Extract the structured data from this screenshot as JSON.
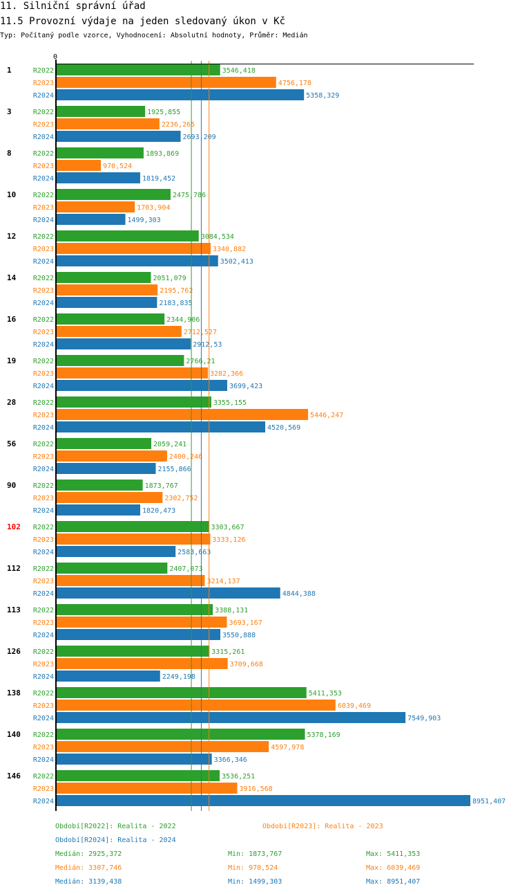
{
  "header": {
    "title": "11. Silniční správní úřad",
    "subtitle": "11.5 Provozní výdaje na jeden sledovaný úkon v Kč",
    "info": "Typ: Počítaný podle vzorce, Vyhodnocení: Absolutní hodnoty, Průměr: Medián"
  },
  "chart_data": {
    "type": "bar",
    "orientation": "horizontal",
    "axis_zero_label": "0",
    "xlim": [
      0,
      8951.407
    ],
    "categories": [
      "1",
      "3",
      "8",
      "10",
      "12",
      "14",
      "16",
      "19",
      "28",
      "56",
      "90",
      "102",
      "112",
      "113",
      "126",
      "138",
      "140",
      "146"
    ],
    "highlight_category": "102",
    "highlight_color": "#ff0000",
    "series": [
      {
        "name": "R2022",
        "color": "#2ca02c",
        "values": [
          "3546,418",
          "1925,855",
          "1893,869",
          "2475,786",
          "3084,534",
          "2051,079",
          "2344,906",
          "2766,21",
          "3355,155",
          "2059,241",
          "1873,767",
          "3303,667",
          "2407,073",
          "3388,131",
          "3315,261",
          "5411,353",
          "5378,169",
          "3536,251"
        ]
      },
      {
        "name": "R2023",
        "color": "#ff7f0e",
        "values": [
          "4756,178",
          "2236,265",
          "970,524",
          "1703,904",
          "3340,882",
          "2195,762",
          "2712,527",
          "3282,366",
          "5446,247",
          "2400,246",
          "2302,752",
          "3333,126",
          "3214,137",
          "3693,167",
          "3709,668",
          "6039,469",
          "4597,978",
          "3916,568"
        ]
      },
      {
        "name": "R2024",
        "color": "#1f77b4",
        "values": [
          "5358,329",
          "2693,209",
          "1819,452",
          "1499,303",
          "3502,413",
          "2183,835",
          "2912,53",
          "3699,423",
          "4520,569",
          "2155,866",
          "1820,473",
          "2583,663",
          "4844,388",
          "3550,888",
          "2249,198",
          "7549,903",
          "3366,346",
          "8951,407"
        ]
      }
    ],
    "median_lines": [
      2925.372,
      3307.746,
      3139.438
    ],
    "legend": [
      {
        "text": "Období[R2022]: Realita - 2022",
        "color": "#2ca02c"
      },
      {
        "text": "Období[R2023]: Realita - 2023",
        "color": "#ff7f0e"
      },
      {
        "text": "Období[R2024]: Realita - 2024",
        "color": "#1f77b4"
      }
    ],
    "stats": [
      {
        "median": "Medián: 2925,372",
        "min": "Min: 1873,767",
        "max": "Max: 5411,353",
        "color": "#2ca02c"
      },
      {
        "median": "Medián: 3307,746",
        "min": "Min: 970,524",
        "max": "Max: 6039,469",
        "color": "#ff7f0e"
      },
      {
        "median": "Medián: 3139,438",
        "min": "Min: 1499,303",
        "max": "Max: 8951,407",
        "color": "#1f77b4"
      }
    ]
  }
}
